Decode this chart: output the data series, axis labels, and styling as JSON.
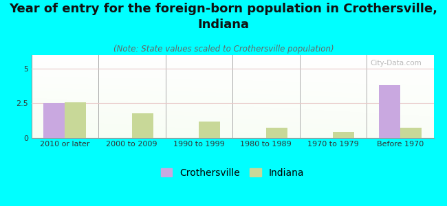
{
  "title": "Year of entry for the foreign-born population in Crothersville,\nIndiana",
  "subtitle": "(Note: State values scaled to Crothersville population)",
  "categories": [
    "2010 or later",
    "2000 to 2009",
    "1990 to 1999",
    "1980 to 1989",
    "1970 to 1979",
    "Before 1970"
  ],
  "crothersville_values": [
    2.5,
    0,
    0,
    0,
    0,
    3.8
  ],
  "indiana_values": [
    2.55,
    1.8,
    1.2,
    0.72,
    0.42,
    0.72
  ],
  "crothersville_color": "#c9a8e0",
  "indiana_color": "#c8d898",
  "ylim": [
    0,
    6
  ],
  "yticks": [
    0,
    2.5,
    5
  ],
  "background_color": "#00ffff",
  "watermark": "City-Data.com",
  "title_fontsize": 13,
  "subtitle_fontsize": 8.5,
  "tick_fontsize": 8,
  "legend_fontsize": 10,
  "bar_width": 0.32
}
